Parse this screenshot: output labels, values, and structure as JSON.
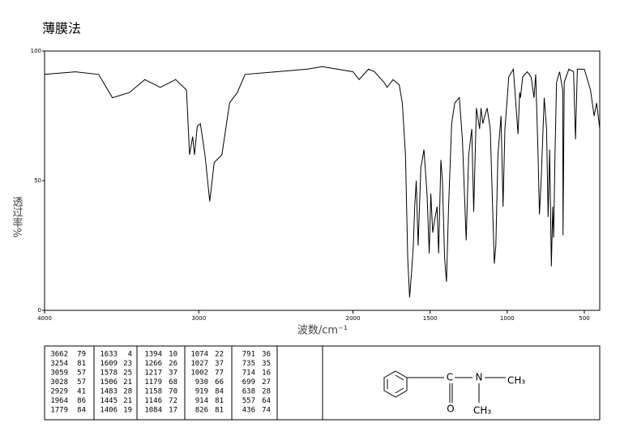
{
  "chart_data": {
    "type": "line",
    "title": "薄膜法",
    "xlabel": "波数/cm⁻¹",
    "ylabel": "透过率%",
    "x": [
      4000,
      3800,
      3650,
      3560,
      3450,
      3350,
      3250,
      3150,
      3080,
      3060,
      3040,
      3028,
      3010,
      2990,
      2960,
      2929,
      2900,
      2850,
      2800,
      2750,
      2700,
      2500,
      2300,
      2200,
      2100,
      2000,
      1960,
      1900,
      1860,
      1800,
      1779,
      1740,
      1700,
      1680,
      1660,
      1645,
      1633,
      1620,
      1609,
      1600,
      1590,
      1578,
      1560,
      1540,
      1520,
      1506,
      1495,
      1483,
      1470,
      1455,
      1445,
      1430,
      1420,
      1406,
      1394,
      1380,
      1360,
      1340,
      1310,
      1290,
      1266,
      1250,
      1230,
      1217,
      1200,
      1179,
      1170,
      1158,
      1146,
      1130,
      1110,
      1095,
      1084,
      1074,
      1060,
      1040,
      1027,
      1015,
      1002,
      990,
      960,
      930,
      919,
      914,
      900,
      870,
      845,
      826,
      815,
      800,
      791,
      780,
      760,
      745,
      735,
      725,
      714,
      705,
      699,
      690,
      680,
      660,
      640,
      638,
      630,
      600,
      570,
      557,
      545,
      500,
      460,
      436,
      420,
      400
    ],
    "values": [
      91,
      92,
      91,
      82,
      84,
      89,
      86,
      89,
      85,
      60,
      67,
      60,
      71,
      72,
      60,
      42,
      57,
      60,
      80,
      84,
      91,
      92,
      93,
      94,
      93,
      92,
      89,
      93,
      92,
      88,
      86,
      89,
      87,
      80,
      60,
      20,
      5,
      15,
      25,
      40,
      50,
      25,
      55,
      62,
      45,
      22,
      45,
      30,
      35,
      40,
      22,
      58,
      50,
      20,
      11,
      40,
      72,
      80,
      82,
      65,
      27,
      60,
      70,
      38,
      78,
      70,
      78,
      72,
      75,
      78,
      70,
      40,
      18,
      25,
      60,
      75,
      40,
      70,
      80,
      90,
      93,
      68,
      84,
      82,
      90,
      92,
      90,
      82,
      91,
      60,
      37,
      50,
      82,
      70,
      36,
      62,
      17,
      40,
      28,
      60,
      88,
      92,
      85,
      29,
      88,
      93,
      92,
      66,
      93,
      93,
      85,
      75,
      80,
      70
    ],
    "color": "#000000",
    "xlim": [
      4000,
      400
    ],
    "ylim": [
      0,
      100
    ],
    "xticks": [
      4000,
      3000,
      2000,
      1500,
      1000,
      500
    ],
    "yticks": [
      0,
      50,
      100
    ]
  },
  "peak_table": {
    "rows": [
      [
        "3662",
        "79",
        "1633",
        "4",
        "1394",
        "10",
        "1074",
        "22",
        "791",
        "36"
      ],
      [
        "3254",
        "81",
        "1609",
        "23",
        "1266",
        "26",
        "1027",
        "37",
        "735",
        "35"
      ],
      [
        "3059",
        "57",
        "1578",
        "25",
        "1217",
        "37",
        "1002",
        "77",
        "714",
        "16"
      ],
      [
        "3028",
        "57",
        "1506",
        "21",
        "1179",
        "68",
        "930",
        "66",
        "699",
        "27"
      ],
      [
        "2929",
        "41",
        "1483",
        "28",
        "1158",
        "70",
        "919",
        "84",
        "638",
        "28"
      ],
      [
        "1964",
        "86",
        "1445",
        "21",
        "1146",
        "72",
        "914",
        "81",
        "557",
        "64"
      ],
      [
        "1779",
        "84",
        "1406",
        "19",
        "1084",
        "17",
        "826",
        "81",
        "436",
        "74"
      ]
    ]
  },
  "structure": {
    "atoms": [
      "C",
      "N",
      "CH₃",
      "O",
      "CH₃"
    ]
  }
}
